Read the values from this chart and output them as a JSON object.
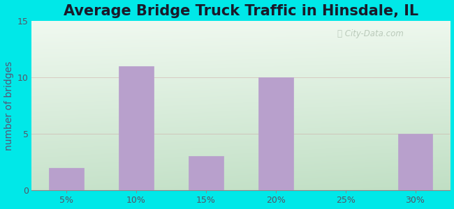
{
  "title": "Average Bridge Truck Traffic in Hinsdale, IL",
  "categories": [
    "5%",
    "10%",
    "15%",
    "20%",
    "25%",
    "30%"
  ],
  "values": [
    2,
    11,
    3,
    10,
    0,
    5
  ],
  "bar_color": "#b8a0cc",
  "bar_edge_color": "#b8a0cc",
  "ylabel": "number of bridges",
  "ylim": [
    0,
    15
  ],
  "yticks": [
    0,
    5,
    10,
    15
  ],
  "background_outer": "#00e8e8",
  "background_inner_topleft": "#d8eedd",
  "background_inner_topright": "#eef4ee",
  "background_inner_bottom": "#c8e8cc",
  "grid_color": "#cc9999",
  "title_fontsize": 15,
  "label_fontsize": 10,
  "tick_fontsize": 9,
  "watermark_text": " City-Data.com",
  "title_color": "#1a1a2a",
  "ylabel_color": "#555577",
  "tick_color": "#555566"
}
